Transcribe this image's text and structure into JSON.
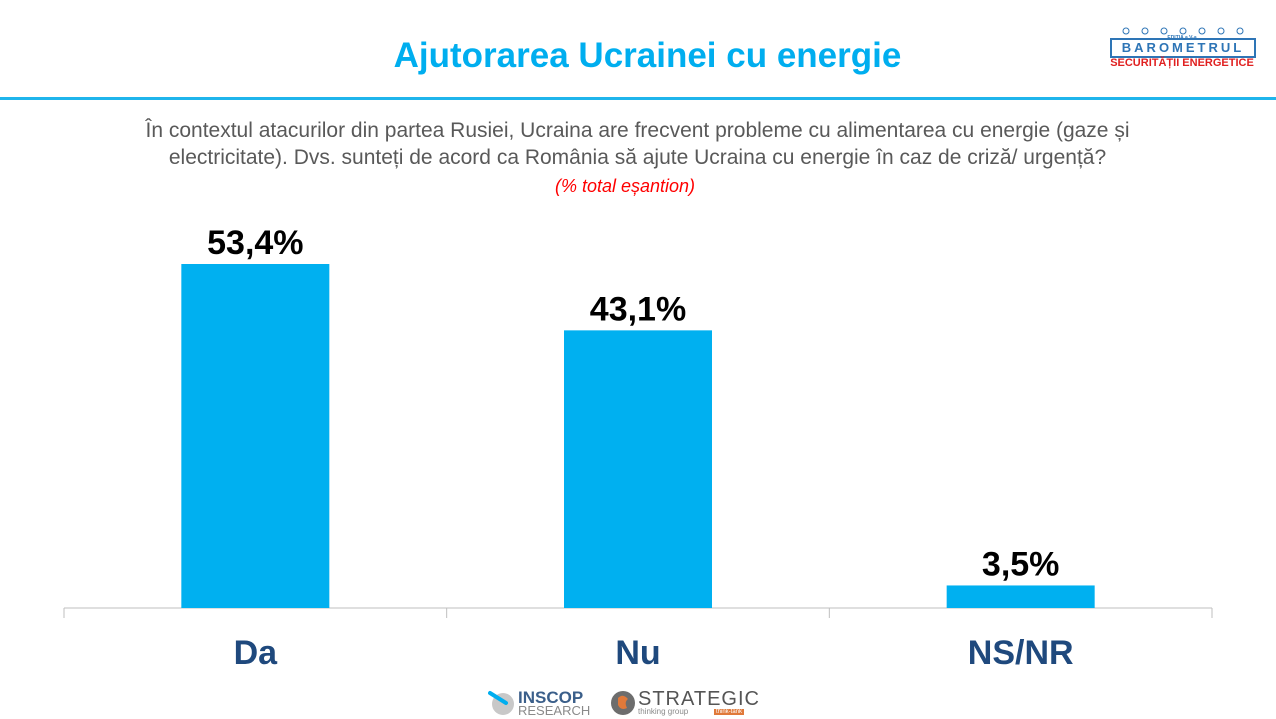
{
  "header": {
    "title": "Ajutorarea Ucrainei cu energie"
  },
  "logo": {
    "edition": "EDIȚIA a V-a",
    "brand": "BAROMETRUL",
    "subtitle": "SECURITĂȚII ENERGETICE"
  },
  "question": {
    "line1": "În contextul atacurilor din partea Rusiei, Ucraina are frecvent probleme cu alimentarea cu energie (gaze și",
    "line2": "electricitate). Dvs. sunteți de acord ca România să ajute Ucraina cu energie în caz de criză/ urgență?",
    "note": "(% total eșantion)"
  },
  "chart_data": {
    "type": "bar",
    "categories": [
      "Da",
      "Nu",
      "NS/NR"
    ],
    "values": [
      53.4,
      43.1,
      3.5
    ],
    "data_labels": [
      "53,4%",
      "43,1%",
      "3,5%"
    ],
    "title": "",
    "xlabel": "",
    "ylabel": "",
    "ylim": [
      0,
      60
    ],
    "grid": false,
    "legend": "none",
    "colors": {
      "bar": "#00b0f0",
      "category_label": "#1f497d",
      "data_label": "#000000",
      "axis": "#bfbfbf"
    }
  },
  "footer": {
    "inscop_name": "INSCOP",
    "inscop_sub": "RESEARCH",
    "strategic_name": "STRATEGIC",
    "strategic_sub": "thinking group",
    "strategic_tag": "think-tank"
  }
}
